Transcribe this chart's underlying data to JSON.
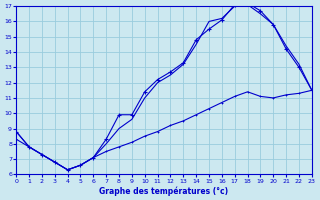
{
  "bg_color": "#cce8f0",
  "line_color": "#0000cc",
  "grid_color": "#99ccdd",
  "xlabel": "Graphe des températures (°c)",
  "xlim": [
    0,
    23
  ],
  "ylim": [
    6,
    17
  ],
  "xticks": [
    0,
    1,
    2,
    3,
    4,
    5,
    6,
    7,
    8,
    9,
    10,
    11,
    12,
    13,
    14,
    15,
    16,
    17,
    18,
    19,
    20,
    21,
    22,
    23
  ],
  "yticks": [
    6,
    7,
    8,
    9,
    10,
    11,
    12,
    13,
    14,
    15,
    16,
    17
  ],
  "curve_jagged_x": [
    0,
    1,
    2,
    3,
    4,
    5,
    6,
    7,
    8,
    9,
    10,
    11,
    12,
    13,
    14,
    15,
    16,
    17,
    18,
    19,
    20,
    21,
    22,
    23
  ],
  "curve_jagged_y": [
    8.8,
    7.8,
    7.3,
    6.8,
    6.3,
    6.6,
    7.1,
    8.3,
    9.9,
    9.9,
    11.4,
    12.2,
    12.7,
    13.3,
    14.8,
    15.5,
    16.1,
    17.1,
    17.2,
    16.7,
    15.8,
    14.2,
    13.0,
    11.5
  ],
  "curve_upper_x": [
    0,
    1,
    2,
    3,
    4,
    5,
    6,
    7,
    8,
    9,
    10,
    11,
    12,
    13,
    14,
    15,
    16,
    17,
    18,
    19,
    20,
    21,
    22,
    23
  ],
  "curve_upper_y": [
    8.8,
    7.8,
    7.3,
    6.8,
    6.3,
    6.6,
    7.1,
    8.0,
    9.0,
    9.6,
    11.0,
    12.0,
    12.5,
    13.2,
    14.5,
    16.0,
    16.2,
    17.0,
    17.1,
    16.5,
    15.8,
    14.4,
    13.2,
    11.5
  ],
  "curve_diag_x": [
    0,
    1,
    2,
    3,
    4,
    5,
    6,
    7,
    8,
    9,
    10,
    11,
    12,
    13,
    14,
    15,
    16,
    17,
    18,
    19,
    20,
    21,
    22,
    23
  ],
  "curve_diag_y": [
    8.3,
    7.8,
    7.3,
    6.8,
    6.3,
    6.6,
    7.1,
    7.5,
    7.8,
    8.1,
    8.5,
    8.8,
    9.2,
    9.5,
    9.9,
    10.3,
    10.7,
    11.1,
    11.4,
    11.1,
    11.0,
    11.2,
    11.3,
    11.5
  ]
}
